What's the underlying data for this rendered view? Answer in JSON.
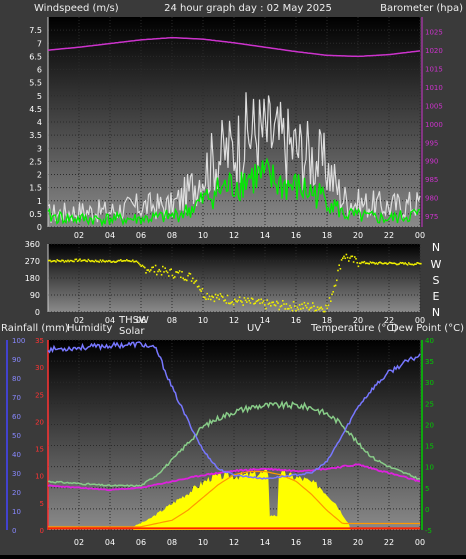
{
  "header": {
    "windspeed_label": "Windspeed (m/s)",
    "title": "24 hour graph day : 02 May 2025",
    "barometer_label": "Barometer (hpa)"
  },
  "direction_labels": [
    "N",
    "W",
    "S",
    "E",
    "N"
  ],
  "bottom_header": {
    "rainfall_label": "Rainfall (mm)",
    "humidity_label": "Humidity",
    "thsw_label": "THSW",
    "solar_label": "Solar",
    "uv_label": "UV",
    "temperature_label": "Temperature (°C)",
    "dewpoint_label": "Dew Point (°C)"
  },
  "colors": {
    "wind_avg": "#00ee00",
    "wind_gust": "#dddddd",
    "barometer": "#cc33cc",
    "direction": "#eeee00",
    "humidity": "#7777ff",
    "temperature": "#88cc88",
    "dewpoint": "#dd22dd",
    "solar": "#ffff00",
    "uv": "#ff9900",
    "rain": "#ff2200",
    "left_axis": "#ff3333",
    "right_axis": "#00cc00",
    "baro_axis": "#cc33cc"
  },
  "chart_data": [
    {
      "type": "line",
      "title": "24 hour graph day : 02 May 2025",
      "ylabel": "Windspeed (m/s)",
      "ylabel_right": "Barometer (hpa)",
      "x_ticks": [
        "02",
        "04",
        "06",
        "08",
        "10",
        "12",
        "14",
        "16",
        "18",
        "20",
        "22",
        "00"
      ],
      "ylim": [
        0,
        8
      ],
      "y_ticks": [
        "0",
        "0.5",
        "1",
        "1.5",
        "2",
        "2.5",
        "3",
        "3.5",
        "4",
        "4.5",
        "5",
        "5.5",
        "6",
        "6.5",
        "7",
        "7.5"
      ],
      "ylim_right": [
        972,
        1029
      ],
      "y_ticks_right": [
        "975",
        "980",
        "985",
        "990",
        "995",
        "1000",
        "1005",
        "1010",
        "1015",
        "1020",
        "1025"
      ],
      "grid": true,
      "series": [
        {
          "name": "Windspeed",
          "x": [
            0,
            2,
            4,
            6,
            8,
            9,
            10,
            11,
            12,
            13,
            14,
            15,
            16,
            17,
            18,
            19,
            20,
            22,
            24
          ],
          "values": [
            0.4,
            0.3,
            0.3,
            0.3,
            0.4,
            0.6,
            1.0,
            1.4,
            1.6,
            1.9,
            1.9,
            1.6,
            1.5,
            1.3,
            1.1,
            0.5,
            0.4,
            0.3,
            0.5
          ]
        },
        {
          "name": "Gust",
          "x": [
            0,
            2,
            4,
            6,
            8,
            9,
            10,
            11,
            12,
            13,
            14,
            15,
            16,
            17,
            18,
            19,
            20,
            22,
            24
          ],
          "values": [
            0.5,
            0.6,
            0.6,
            0.8,
            0.8,
            1.3,
            2.1,
            2.7,
            3.0,
            3.6,
            3.6,
            3.3,
            3.0,
            2.7,
            2.3,
            1.1,
            0.9,
            0.8,
            0.9
          ]
        },
        {
          "name": "Barometer",
          "x": [
            0,
            2,
            4,
            6,
            8,
            10,
            12,
            14,
            16,
            18,
            20,
            22,
            24
          ],
          "values": [
            1020.0,
            1020.8,
            1021.8,
            1022.8,
            1023.4,
            1023.0,
            1022.0,
            1020.8,
            1019.6,
            1018.6,
            1018.3,
            1018.8,
            1019.8
          ]
        }
      ]
    },
    {
      "type": "scatter",
      "ylabel_right": "N W S E N",
      "ylim": [
        0,
        360
      ],
      "y_ticks": [
        "0",
        "90",
        "180",
        "270",
        "360"
      ],
      "x_ticks": [
        "02",
        "04",
        "06",
        "08",
        "10",
        "12",
        "14",
        "16",
        "18",
        "20",
        "22",
        "00"
      ],
      "grid": true,
      "series": [
        {
          "name": "Wind direction",
          "x": [
            0,
            1,
            2,
            3,
            4,
            5,
            5.6,
            6,
            7,
            8,
            9,
            9.5,
            10,
            11,
            12,
            13,
            14,
            15,
            16,
            17,
            18,
            19,
            19.5,
            20,
            21,
            22,
            23,
            24
          ],
          "values": [
            272,
            270,
            274,
            270,
            268,
            272,
            270,
            235,
            222,
            205,
            190,
            170,
            95,
            75,
            62,
            50,
            40,
            35,
            30,
            28,
            22,
            305,
            275,
            262,
            258,
            258,
            255,
            255
          ]
        }
      ]
    },
    {
      "type": "line",
      "ylabel": "Rainfall (mm)",
      "ylabel_right": "Temperature (°C)",
      "x_ticks": [
        "02",
        "04",
        "06",
        "08",
        "10",
        "12",
        "14",
        "16",
        "18",
        "20",
        "22",
        "00"
      ],
      "ylim_outer": [
        0,
        100
      ],
      "y_ticks_outer": [
        "0",
        "10",
        "20",
        "30",
        "40",
        "50",
        "60",
        "70",
        "80",
        "90",
        "100"
      ],
      "ylim_left": [
        0,
        35
      ],
      "y_ticks_left": [
        "0",
        "5",
        "10",
        "15",
        "20",
        "25",
        "30",
        "35"
      ],
      "ylim_right": [
        -5,
        40
      ],
      "y_ticks_right": [
        "-5",
        "0",
        "5",
        "10",
        "15",
        "20",
        "25",
        "30",
        "35",
        "40"
      ],
      "grid": true,
      "series": [
        {
          "name": "Humidity",
          "x": [
            0,
            2,
            4,
            6,
            7,
            8,
            9,
            10,
            11,
            12,
            13,
            14,
            15,
            16,
            17,
            18,
            19,
            20,
            21,
            22,
            23,
            24
          ],
          "values": [
            95,
            96,
            97,
            98,
            95,
            75,
            58,
            42,
            32,
            29,
            28,
            27,
            28,
            29,
            30,
            36,
            50,
            65,
            75,
            83,
            88,
            92
          ]
        },
        {
          "name": "Temperature",
          "x": [
            0,
            2,
            4,
            6,
            7,
            8,
            9,
            10,
            11,
            12,
            13,
            14,
            15,
            16,
            17,
            18,
            19,
            20,
            21,
            22,
            23,
            24
          ],
          "values": [
            6.5,
            6.0,
            5.5,
            5.5,
            8.0,
            11.5,
            15.5,
            19.5,
            21.5,
            23.0,
            24.0,
            24.5,
            24.5,
            24.5,
            24.0,
            22.5,
            20.0,
            15.5,
            12.0,
            10.0,
            8.5,
            7.0
          ]
        },
        {
          "name": "Dew Point",
          "x": [
            0,
            2,
            4,
            6,
            8,
            10,
            12,
            14,
            16,
            18,
            20,
            22,
            24
          ],
          "values": [
            5.5,
            5.0,
            4.5,
            5.0,
            6.5,
            8.0,
            9.0,
            9.5,
            9.0,
            9.5,
            10.5,
            8.5,
            6.5
          ]
        },
        {
          "name": "Solar",
          "x": [
            5.5,
            6.5,
            7.5,
            8.5,
            9.5,
            10.5,
            11.5,
            12.5,
            13.5,
            14.5,
            15.5,
            16.5,
            17.5,
            18.5,
            19.5
          ],
          "values": [
            2,
            6,
            12,
            18,
            24,
            30,
            31,
            31,
            32,
            33,
            31,
            29,
            25,
            16,
            2
          ]
        },
        {
          "name": "UV",
          "x": [
            6,
            8,
            9,
            10,
            11,
            12,
            13,
            14,
            15,
            16,
            17,
            18,
            19
          ],
          "values": [
            0.5,
            1.5,
            3.0,
            5.0,
            7.0,
            8.5,
            9.0,
            9.0,
            8.5,
            7.5,
            5.5,
            3.0,
            1.0
          ]
        },
        {
          "name": "Rainfall",
          "x": [
            0,
            24
          ],
          "values": [
            0.3,
            0.3
          ]
        }
      ]
    }
  ]
}
